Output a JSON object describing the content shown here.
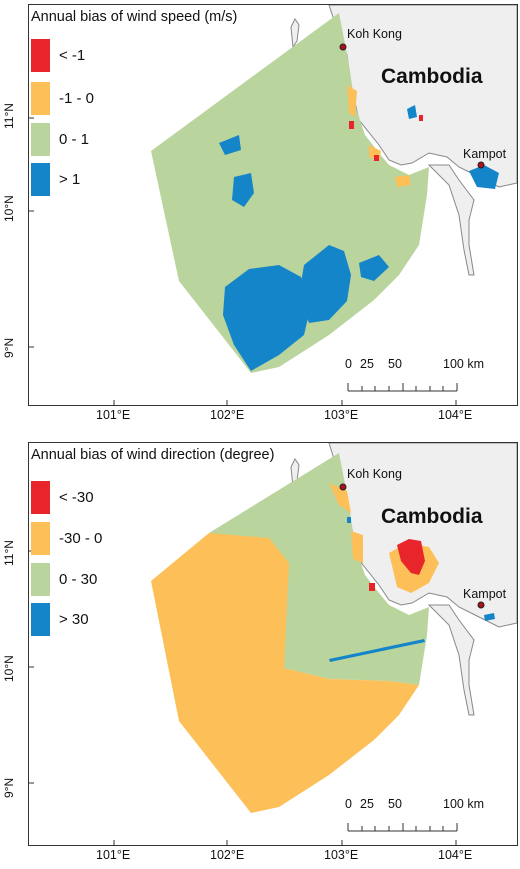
{
  "panels": [
    {
      "id": "wind-speed",
      "legend_title": "Annual bias of wind speed (m/s)",
      "legend": [
        {
          "label": "< -1",
          "color": "#e8252a"
        },
        {
          "label": "-1 - 0",
          "color": "#fdbf57"
        },
        {
          "label": "0 - 1",
          "color": "#b9d49c"
        },
        {
          "label": "> 1",
          "color": "#1585c9"
        }
      ],
      "dominant_class": "0 - 1",
      "country_label": "Cambodia",
      "cities": [
        "Koh Kong",
        "Kampot"
      ],
      "scale_bar": {
        "labels": [
          "0",
          "25",
          "50",
          "100 km"
        ]
      },
      "lat_labels": [
        "11°N",
        "10°N",
        "9°N"
      ],
      "lon_labels": [
        "101°E",
        "102°E",
        "103°E",
        "104°E"
      ]
    },
    {
      "id": "wind-direction",
      "legend_title": "Annual bias of wind direction (degree)",
      "legend": [
        {
          "label": "< -30",
          "color": "#e8252a"
        },
        {
          "label": "-30 - 0",
          "color": "#fdbf57"
        },
        {
          "label": "0 - 30",
          "color": "#b9d49c"
        },
        {
          "label": "> 30",
          "color": "#1585c9"
        }
      ],
      "dominant_class": "-30 - 0",
      "country_label": "Cambodia",
      "cities": [
        "Koh Kong",
        "Kampot"
      ],
      "scale_bar": {
        "labels": [
          "0",
          "25",
          "50",
          "100 km"
        ]
      },
      "lat_labels": [
        "11°N",
        "10°N",
        "9°N"
      ],
      "lon_labels": [
        "101°E",
        "102°E",
        "103°E",
        "104°E"
      ]
    }
  ],
  "colors": {
    "land": "#efefef",
    "coast": "#888888",
    "city_marker": "#b0101c"
  }
}
